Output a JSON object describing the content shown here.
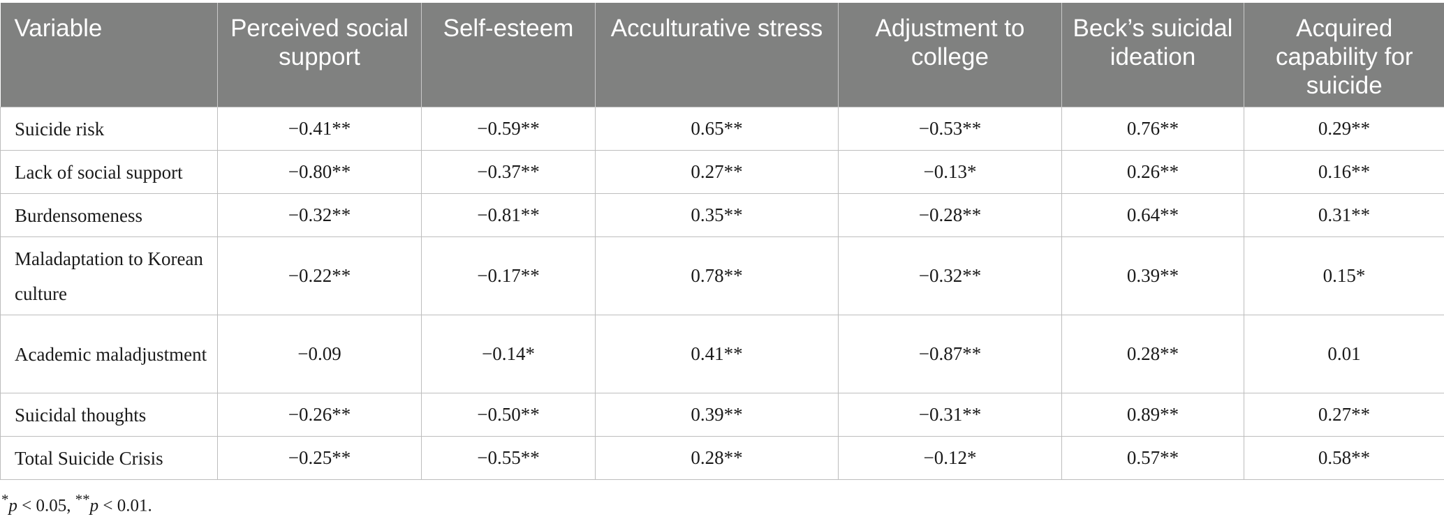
{
  "table": {
    "headers": [
      "Variable",
      "Perceived social support",
      "Self-esteem",
      "Acculturative stress",
      "Adjustment to college",
      "Beck’s suicidal ideation",
      "Acquired capability for suicide"
    ],
    "rows": [
      {
        "variable": "Suicide risk",
        "values": [
          "−0.41**",
          "−0.59**",
          "0.65**",
          "−0.53**",
          "0.76**",
          "0.29**"
        ]
      },
      {
        "variable": "Lack of social support",
        "values": [
          "−0.80**",
          "−0.37**",
          "0.27**",
          "−0.13*",
          "0.26**",
          "0.16**"
        ]
      },
      {
        "variable": "Burdensomeness",
        "values": [
          "−0.32**",
          "−0.81**",
          "0.35**",
          "−0.28**",
          "0.64**",
          "0.31**"
        ]
      },
      {
        "variable": "Maladaptation to Korean culture",
        "values": [
          "−0.22**",
          "−0.17**",
          "0.78**",
          "−0.32**",
          "0.39**",
          "0.15*"
        ]
      },
      {
        "variable": "Academic maladjustment",
        "values": [
          "−0.09",
          "−0.14*",
          "0.41**",
          "−0.87**",
          "0.28**",
          "0.01"
        ]
      },
      {
        "variable": "Suicidal thoughts",
        "values": [
          "−0.26**",
          "−0.50**",
          "0.39**",
          "−0.31**",
          "0.89**",
          "0.27**"
        ]
      },
      {
        "variable": "Total Suicide Crisis",
        "values": [
          "−0.25**",
          "−0.55**",
          "0.28**",
          "−0.12*",
          "0.57**",
          "0.58**"
        ]
      }
    ]
  },
  "note": {
    "star1": "*",
    "p1": "p",
    "text1": " < 0.05, ",
    "star2": "**",
    "p2": "p",
    "text2": " < 0.01."
  },
  "colors": {
    "header_bg": "#808180",
    "header_text": "#ffffff",
    "grid": "#bdbdbd"
  }
}
